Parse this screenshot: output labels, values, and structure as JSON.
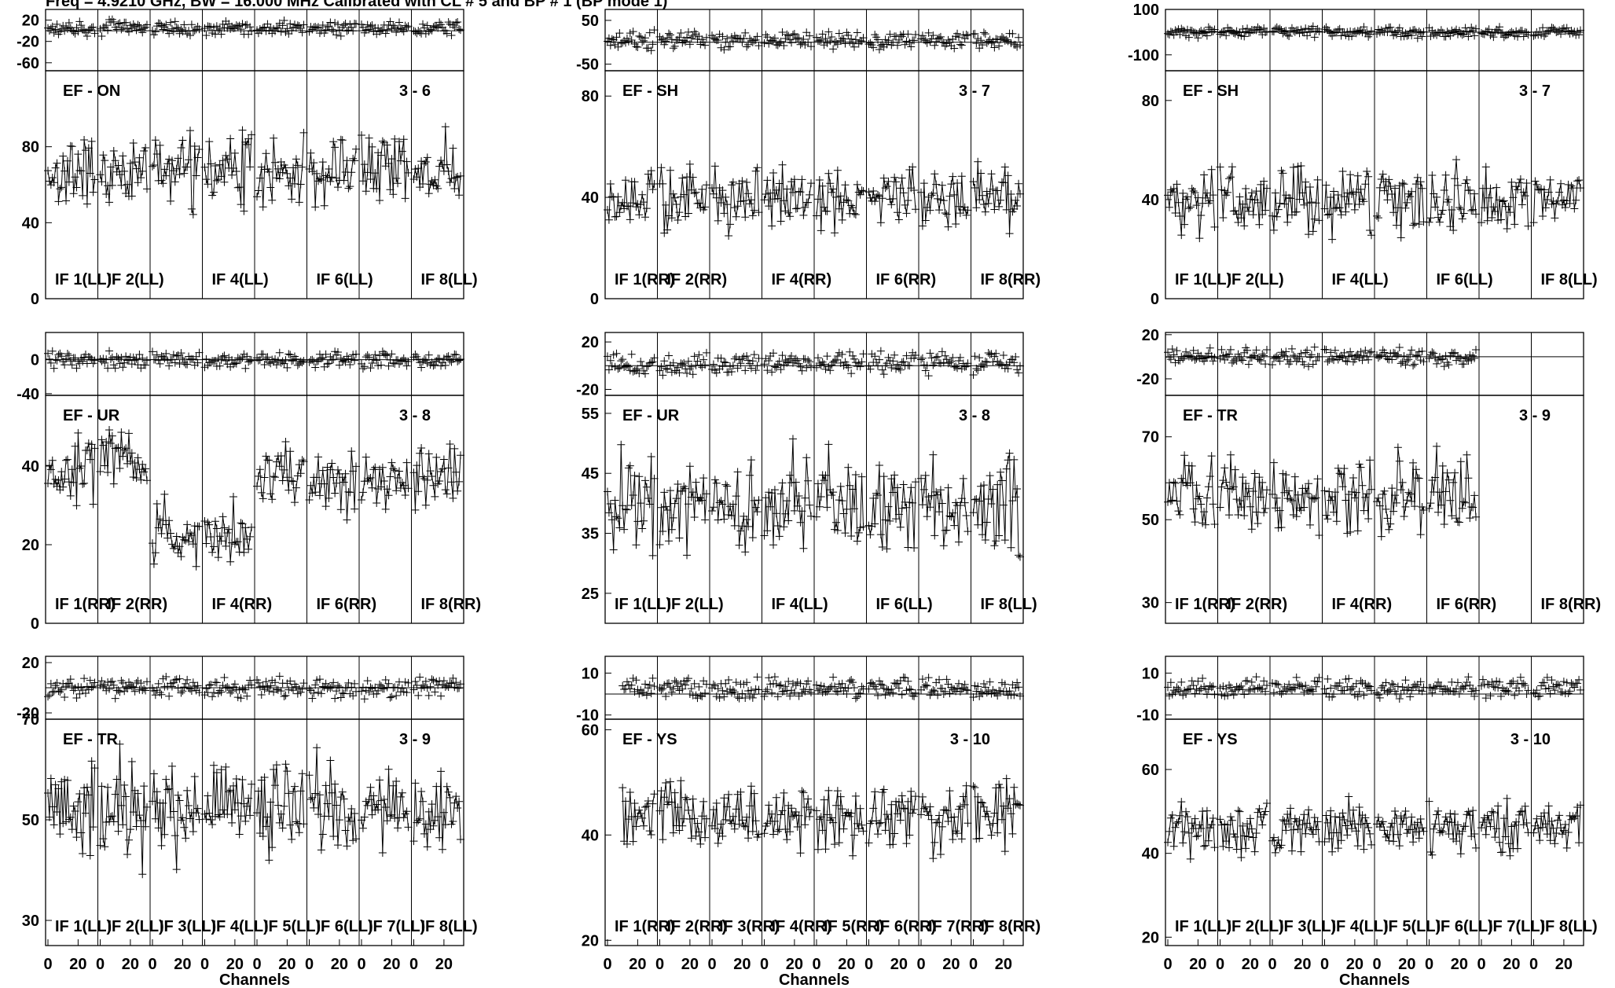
{
  "header": {
    "text": "Freq = 4.9210 GHz, BW = 16.000 MHz Calibrated with CL # 5 and BP # 1 (BP mode 1)"
  },
  "common": {
    "x_axis_label": "Channels",
    "x_tick_labels": [
      "0",
      "20"
    ],
    "x_range": [
      0,
      32
    ]
  },
  "chart_data": [
    {
      "type": "line",
      "baseline": "EF - ON",
      "baseline_num": "3 - 6",
      "col": 0,
      "row": 0,
      "nif": 8,
      "if_labels": [
        "IF 1(LL)",
        "IF 2(LL)",
        "IF 4(LL)",
        "IF 6(LL)",
        "IF 8(LL)"
      ],
      "if_label_index": [
        0,
        1,
        3,
        5,
        7
      ],
      "phase": {
        "ylim": [
          -75,
          40
        ],
        "ticks": [
          "20",
          "-20",
          "-60"
        ],
        "tick_values": [
          20,
          -20,
          -60
        ],
        "ref_line": 0,
        "center": 5,
        "spread": 12
      },
      "amp": {
        "ylim": [
          0,
          120
        ],
        "ticks": [
          "80",
          "40",
          "0"
        ],
        "tick_values": [
          80,
          40,
          0
        ],
        "mean": 67,
        "spread": 14
      },
      "active": [
        1,
        1,
        1,
        1,
        1,
        1,
        1,
        1
      ]
    },
    {
      "type": "line",
      "baseline": "EF - SH",
      "baseline_num": "3 - 7",
      "col": 1,
      "row": 0,
      "nif": 8,
      "if_labels": [
        "IF 1(RR)",
        "IF 2(RR)",
        "IF 4(RR)",
        "IF 6(RR)",
        "IF 8(RR)"
      ],
      "if_label_index": [
        0,
        1,
        3,
        5,
        7
      ],
      "phase": {
        "ylim": [
          -65,
          75
        ],
        "ticks": [
          "50",
          "-50"
        ],
        "tick_values": [
          50,
          -50
        ],
        "ref_line": 0,
        "center": 5,
        "spread": 18
      },
      "amp": {
        "ylim": [
          0,
          90
        ],
        "ticks": [
          "80",
          "40",
          "0"
        ],
        "tick_values": [
          80,
          40,
          0
        ],
        "mean": 40,
        "spread": 9
      },
      "active": [
        1,
        1,
        1,
        1,
        1,
        1,
        1,
        1
      ]
    },
    {
      "type": "line",
      "baseline": "EF - SH",
      "baseline_num": "3 - 7",
      "col": 2,
      "row": 0,
      "nif": 8,
      "if_labels": [
        "IF 1(LL)",
        "IF 2(LL)",
        "IF 4(LL)",
        "IF 6(LL)",
        "IF 8(LL)"
      ],
      "if_label_index": [
        0,
        1,
        3,
        5,
        7
      ],
      "phase": {
        "ylim": [
          -170,
          100
        ],
        "ticks": [
          "100",
          "-100"
        ],
        "tick_values": [
          100,
          -100
        ],
        "ref_line": 0,
        "center": 0,
        "spread": 20
      },
      "amp": {
        "ylim": [
          0,
          92
        ],
        "ticks": [
          "80",
          "40",
          "0"
        ],
        "tick_values": [
          80,
          40,
          0
        ],
        "mean": 40,
        "spread": 10
      },
      "active": [
        1,
        1,
        1,
        1,
        1,
        1,
        1,
        1
      ]
    },
    {
      "type": "line",
      "baseline": "EF - UR",
      "baseline_num": "3 - 8",
      "col": 0,
      "row": 1,
      "nif": 8,
      "if_labels": [
        "IF 1(RR)",
        "IF 2(RR)",
        "IF 4(RR)",
        "IF 6(RR)",
        "IF 8(RR)"
      ],
      "if_label_index": [
        0,
        1,
        3,
        5,
        7
      ],
      "phase": {
        "ylim": [
          -42,
          32
        ],
        "ticks": [
          "0",
          "-40"
        ],
        "tick_values": [
          0,
          -40
        ],
        "ref_line": 0,
        "center": 0,
        "spread": 8
      },
      "amp": {
        "ylim": [
          0,
          58
        ],
        "ticks": [
          "40",
          "20",
          "0"
        ],
        "tick_values": [
          40,
          20,
          0
        ],
        "mean": 38,
        "spread": 6
      },
      "if_means": [
        38,
        42,
        23,
        22,
        38,
        36,
        36,
        38
      ],
      "active": [
        1,
        1,
        1,
        1,
        1,
        1,
        1,
        1
      ]
    },
    {
      "type": "line",
      "baseline": "EF - UR",
      "baseline_num": "3 - 8",
      "col": 1,
      "row": 1,
      "nif": 8,
      "if_labels": [
        "IF 1(LL)",
        "IF 2(LL)",
        "IF 4(LL)",
        "IF 6(LL)",
        "IF 8(LL)"
      ],
      "if_label_index": [
        0,
        1,
        3,
        5,
        7
      ],
      "phase": {
        "ylim": [
          -25,
          28
        ],
        "ticks": [
          "20",
          "-20"
        ],
        "tick_values": [
          20,
          -20
        ],
        "ref_line": 0,
        "center": 2,
        "spread": 8
      },
      "amp": {
        "ylim": [
          20,
          58
        ],
        "ticks": [
          "55",
          "45",
          "35",
          "25"
        ],
        "tick_values": [
          55,
          45,
          35,
          25
        ],
        "mean": 40,
        "spread": 6
      },
      "active": [
        1,
        1,
        1,
        1,
        1,
        1,
        1,
        1
      ]
    },
    {
      "type": "line",
      "baseline": "EF - TR",
      "baseline_num": "3 - 9",
      "col": 2,
      "row": 1,
      "nif": 8,
      "if_labels": [
        "IF 1(RR)",
        "IF 2(RR)",
        "IF 4(RR)",
        "IF 6(RR)",
        "IF 8(RR)"
      ],
      "if_label_index": [
        0,
        1,
        3,
        5,
        7
      ],
      "phase": {
        "ylim": [
          -35,
          22
        ],
        "ticks": [
          "20",
          "-20"
        ],
        "tick_values": [
          20,
          -20
        ],
        "ref_line": 0,
        "center": 0,
        "spread": 7
      },
      "amp": {
        "ylim": [
          25,
          80
        ],
        "ticks": [
          "70",
          "50",
          "30"
        ],
        "tick_values": [
          70,
          50,
          30
        ],
        "mean": 56,
        "spread": 7
      },
      "active": [
        1,
        1,
        1,
        1,
        1,
        1,
        0,
        0
      ]
    },
    {
      "type": "line",
      "baseline": "EF - TR",
      "baseline_num": "3 - 9",
      "col": 0,
      "row": 2,
      "nif": 8,
      "if_labels": [
        "IF 1(LL)",
        "IF 2(LL)",
        "IF 3(LL)",
        "IF 4(LL)",
        "IF 5(LL)",
        "IF 6(LL)",
        "IF 7(LL)",
        "IF 8(LL)"
      ],
      "if_label_index": [
        0,
        1,
        2,
        3,
        4,
        5,
        6,
        7
      ],
      "phase": {
        "ylim": [
          -25,
          25
        ],
        "ticks": [
          "20",
          "-20"
        ],
        "tick_values": [
          20,
          -20
        ],
        "ref_line": 0,
        "center": 0,
        "spread": 7
      },
      "amp": {
        "ylim": [
          25,
          70
        ],
        "ticks": [
          "70",
          "50",
          "30"
        ],
        "tick_values": [
          70,
          50,
          30
        ],
        "mean": 52,
        "spread": 7
      },
      "active": [
        1,
        1,
        1,
        1,
        1,
        1,
        1,
        1
      ]
    },
    {
      "type": "line",
      "baseline": "EF - YS",
      "baseline_num": "3 - 10",
      "col": 1,
      "row": 2,
      "nif": 8,
      "if_labels": [
        "IF 1(RR)",
        "IF 2(RR)",
        "IF 3(RR)",
        "IF 4(RR)",
        "IF 5(RR)",
        "IF 6(RR)",
        "IF 7(RR)",
        "IF 8(RR)"
      ],
      "if_label_index": [
        0,
        1,
        2,
        3,
        4,
        5,
        6,
        7
      ],
      "phase": {
        "ylim": [
          -12,
          18
        ],
        "ticks": [
          "10",
          "-10"
        ],
        "tick_values": [
          10,
          -10
        ],
        "ref_line": 0,
        "center": 3,
        "spread": 4
      },
      "amp": {
        "ylim": [
          19,
          62
        ],
        "ticks": [
          "60",
          "40",
          "20"
        ],
        "tick_values": [
          60,
          40,
          20
        ],
        "mean": 43,
        "spread": 5
      },
      "active": [
        1,
        1,
        1,
        1,
        1,
        1,
        1,
        1
      ],
      "start_channel": [
        10,
        0,
        0,
        0,
        0,
        0,
        0,
        0
      ]
    },
    {
      "type": "line",
      "baseline": "EF - YS",
      "baseline_num": "3 - 10",
      "col": 2,
      "row": 2,
      "nif": 8,
      "if_labels": [
        "IF 1(LL)",
        "IF 2(LL)",
        "IF 3(LL)",
        "IF 4(LL)",
        "IF 5(LL)",
        "IF 6(LL)",
        "IF 7(LL)",
        "IF 8(LL)"
      ],
      "if_label_index": [
        0,
        1,
        2,
        3,
        4,
        5,
        6,
        7
      ],
      "phase": {
        "ylim": [
          -12,
          18
        ],
        "ticks": [
          "10",
          "-10"
        ],
        "tick_values": [
          10,
          -10
        ],
        "ref_line": 0,
        "center": 3,
        "spread": 4
      },
      "amp": {
        "ylim": [
          18,
          72
        ],
        "ticks": [
          "60",
          "40",
          "20"
        ],
        "tick_values": [
          60,
          40,
          20
        ],
        "mean": 46,
        "spread": 5
      },
      "active": [
        1,
        1,
        1,
        1,
        1,
        1,
        1,
        1
      ]
    }
  ]
}
